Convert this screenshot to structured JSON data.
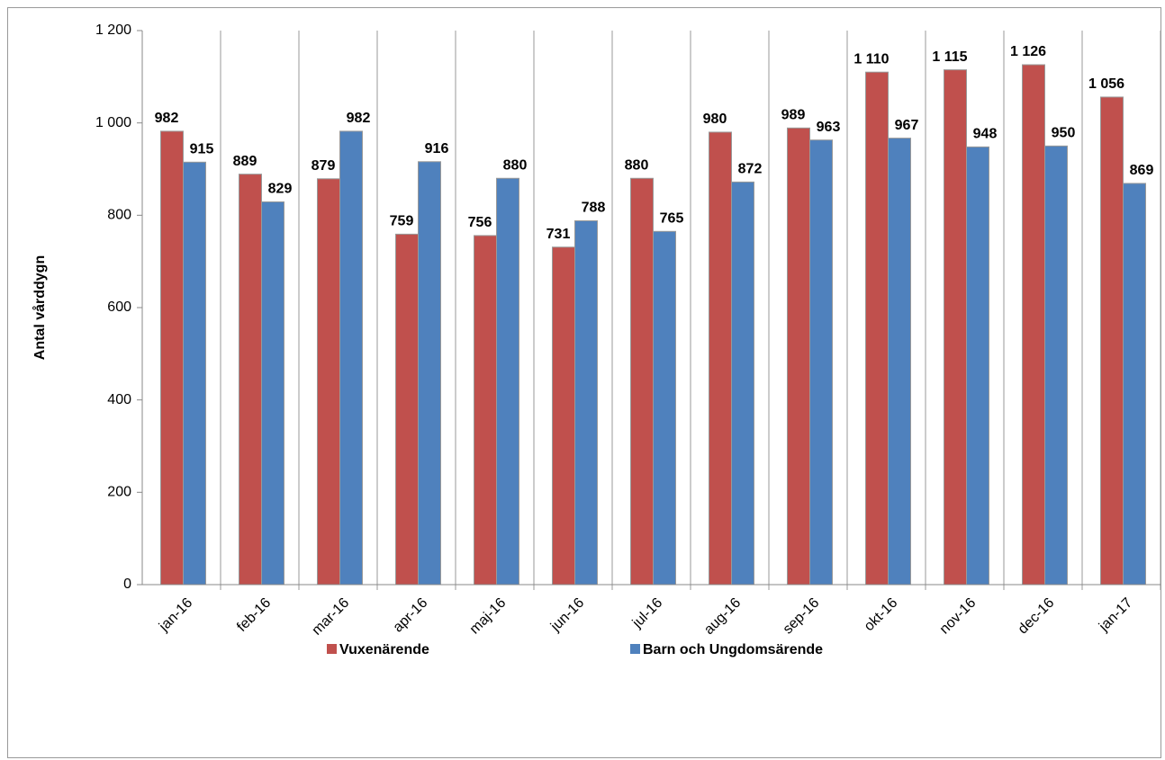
{
  "chart_data": {
    "type": "bar",
    "y_label": "Antal vårddygn",
    "categories": [
      "jan-16",
      "feb-16",
      "mar-16",
      "apr-16",
      "maj-16",
      "jun-16",
      "jul-16",
      "aug-16",
      "sep-16",
      "okt-16",
      "nov-16",
      "dec-16",
      "jan-17"
    ],
    "series": [
      {
        "name": "Vuxenärende",
        "color": "#c0504d",
        "values": [
          982,
          889,
          879,
          759,
          756,
          731,
          880,
          980,
          989,
          1110,
          1115,
          1126,
          1056
        ],
        "value_labels": [
          "982",
          "889",
          "879",
          "759",
          "756",
          "731",
          "880",
          "980",
          "989",
          "1 110",
          "1 115",
          "1 126",
          "1 056"
        ]
      },
      {
        "name": "Barn och Ungdomsärende",
        "color": "#4f81bd",
        "values": [
          915,
          829,
          982,
          916,
          880,
          788,
          765,
          872,
          963,
          967,
          948,
          950,
          869
        ],
        "value_labels": [
          "915",
          "829",
          "982",
          "916",
          "880",
          "788",
          "765",
          "872",
          "963",
          "967",
          "948",
          "950",
          "869"
        ]
      }
    ],
    "ylim": [
      0,
      1200
    ],
    "yticks": [
      0,
      200,
      400,
      600,
      800,
      {
        "value": 1000,
        "label": "1 000"
      },
      {
        "value": 1200,
        "label": "1 200"
      }
    ],
    "legend": "bottom"
  }
}
